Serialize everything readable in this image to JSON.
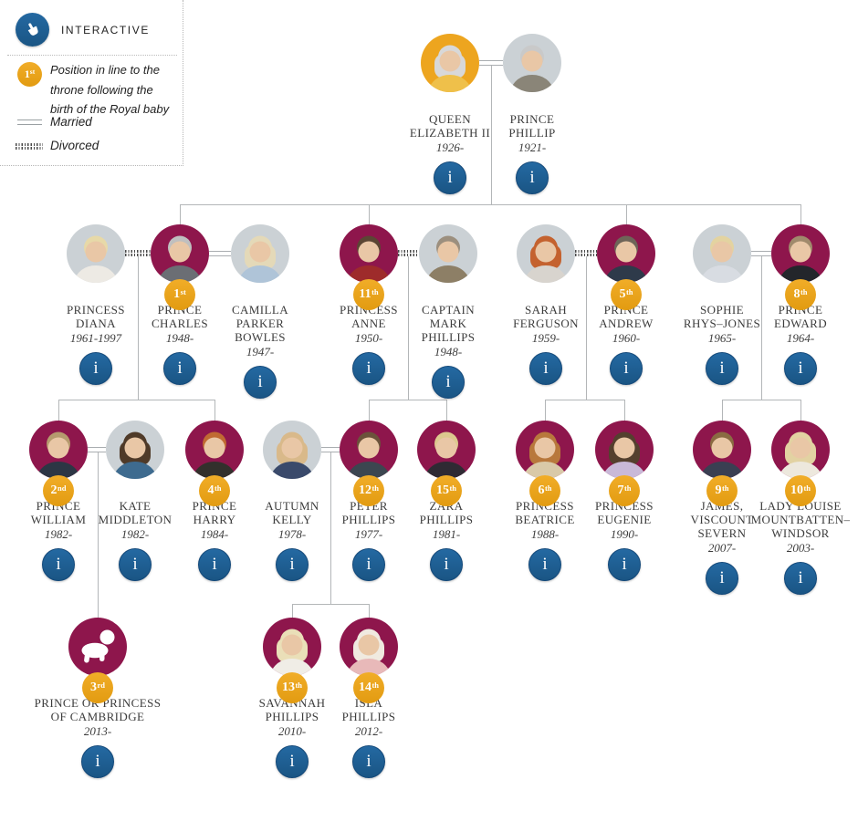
{
  "legend": {
    "interactive_label": "INTERACTIVE",
    "position_badge": {
      "num": "1",
      "suffix": "st"
    },
    "position_text": "Position in line to the\nthrone following the\nbirth of the Royal baby",
    "married_label": "Married",
    "divorced_label": "Divorced"
  },
  "ui": {
    "info_button_label": "i"
  },
  "colors": {
    "royal_circle": "#8E164C",
    "spouse_circle": "#CBD1D5",
    "queen_circle": "#EDA51F",
    "badge": "#E9A51F",
    "info_button": "#1F639B",
    "line": "#B3B6B8"
  },
  "people": [
    {
      "id": "queen-elizabeth-ii",
      "name_lines": [
        "QUEEN",
        "ELIZABETH II"
      ],
      "dates": "1926-",
      "royal": true
    },
    {
      "id": "prince-phillip",
      "name_lines": [
        "PRINCE",
        "PHILLIP"
      ],
      "dates": "1921-",
      "royal": false
    },
    {
      "id": "princess-diana",
      "name_lines": [
        "PRINCESS",
        "DIANA"
      ],
      "dates": "1961-1997",
      "royal": false
    },
    {
      "id": "prince-charles",
      "name_lines": [
        "PRINCE",
        "CHARLES"
      ],
      "dates": "1948-",
      "royal": true,
      "position": {
        "num": "1",
        "suffix": "st"
      }
    },
    {
      "id": "camilla-parker-bowles",
      "name_lines": [
        "CAMILLA",
        "PARKER",
        "BOWLES"
      ],
      "dates": "1947-",
      "royal": false
    },
    {
      "id": "princess-anne",
      "name_lines": [
        "PRINCESS",
        "ANNE"
      ],
      "dates": "1950-",
      "royal": true,
      "position": {
        "num": "11",
        "suffix": "th"
      }
    },
    {
      "id": "captain-mark-phillips",
      "name_lines": [
        "CAPTAIN",
        "MARK",
        "PHILLIPS"
      ],
      "dates": "1948-",
      "royal": false
    },
    {
      "id": "sarah-ferguson",
      "name_lines": [
        "SARAH",
        "FERGUSON"
      ],
      "dates": "1959-",
      "royal": false
    },
    {
      "id": "prince-andrew",
      "name_lines": [
        "PRINCE",
        "ANDREW"
      ],
      "dates": "1960-",
      "royal": true,
      "position": {
        "num": "5",
        "suffix": "th"
      }
    },
    {
      "id": "sophie-rhys-jones",
      "name_lines": [
        "SOPHIE",
        "RHYS–JONES"
      ],
      "dates": "1965-",
      "royal": false
    },
    {
      "id": "prince-edward",
      "name_lines": [
        "PRINCE",
        "EDWARD"
      ],
      "dates": "1964-",
      "royal": true,
      "position": {
        "num": "8",
        "suffix": "th"
      }
    },
    {
      "id": "prince-william",
      "name_lines": [
        "PRINCE",
        "WILLIAM"
      ],
      "dates": "1982-",
      "royal": true,
      "position": {
        "num": "2",
        "suffix": "nd"
      }
    },
    {
      "id": "kate-middleton",
      "name_lines": [
        "KATE",
        "MIDDLETON"
      ],
      "dates": "1982-",
      "royal": false
    },
    {
      "id": "prince-harry",
      "name_lines": [
        "PRINCE",
        "HARRY"
      ],
      "dates": "1984-",
      "royal": true,
      "position": {
        "num": "4",
        "suffix": "th"
      }
    },
    {
      "id": "autumn-kelly",
      "name_lines": [
        "AUTUMN",
        "KELLY"
      ],
      "dates": "1978-",
      "royal": false
    },
    {
      "id": "peter-phillips",
      "name_lines": [
        "PETER",
        "PHILLIPS"
      ],
      "dates": "1977-",
      "royal": true,
      "position": {
        "num": "12",
        "suffix": "th"
      }
    },
    {
      "id": "zara-phillips",
      "name_lines": [
        "ZARA",
        "PHILLIPS"
      ],
      "dates": "1981-",
      "royal": true,
      "position": {
        "num": "15",
        "suffix": "th"
      }
    },
    {
      "id": "princess-beatrice",
      "name_lines": [
        "PRINCESS",
        "BEATRICE"
      ],
      "dates": "1988-",
      "royal": true,
      "position": {
        "num": "6",
        "suffix": "th"
      }
    },
    {
      "id": "princess-eugenie",
      "name_lines": [
        "PRINCESS",
        "EUGENIE"
      ],
      "dates": "1990-",
      "royal": true,
      "position": {
        "num": "7",
        "suffix": "th"
      }
    },
    {
      "id": "james-viscount-severn",
      "name_lines": [
        "JAMES,",
        "VISCOUNT",
        "SEVERN"
      ],
      "dates": "2007-",
      "royal": true,
      "position": {
        "num": "9",
        "suffix": "th"
      }
    },
    {
      "id": "lady-louise-mountbatten-windsor",
      "name_lines": [
        "LADY LOUISE",
        "MOUNTBATTEN–",
        "WINDSOR"
      ],
      "dates": "2003-",
      "royal": true,
      "position": {
        "num": "10",
        "suffix": "th"
      }
    },
    {
      "id": "prince-or-princess-of-cambridge",
      "name_lines": [
        "PRINCE OR PRINCESS",
        "OF CAMBRIDGE"
      ],
      "dates": "2013-",
      "royal": true,
      "position": {
        "num": "3",
        "suffix": "rd"
      }
    },
    {
      "id": "savannah-phillips",
      "name_lines": [
        "SAVANNAH",
        "PHILLIPS"
      ],
      "dates": "2010-",
      "royal": true,
      "position": {
        "num": "13",
        "suffix": "th"
      }
    },
    {
      "id": "isla-phillips",
      "name_lines": [
        "ISLA",
        "PHILLIPS"
      ],
      "dates": "2012-",
      "royal": true,
      "position": {
        "num": "14",
        "suffix": "th"
      }
    }
  ]
}
